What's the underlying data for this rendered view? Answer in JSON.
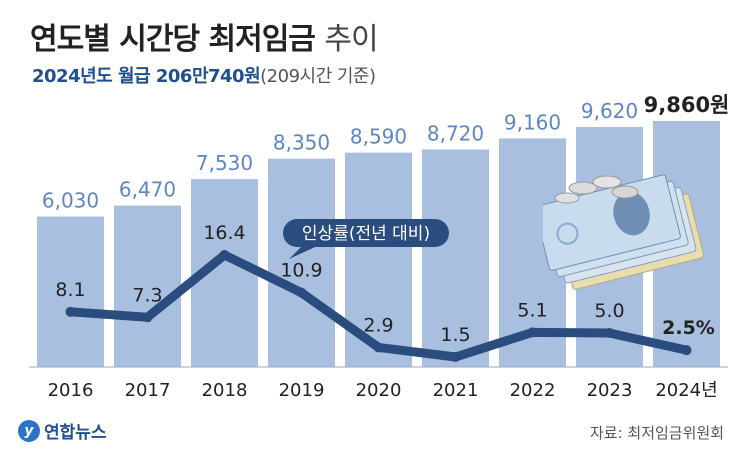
{
  "header": {
    "title_main": "연도별 시간당 최저임금",
    "title_light": "추이",
    "subtitle_main": "2024년도 월급 206만740원",
    "subtitle_basis": "(209시간 기준)"
  },
  "footer": {
    "logo_mark": "y",
    "logo_text": "연합뉴스",
    "source": "자료: 최저임금위원회"
  },
  "colors": {
    "bar": "#a9bfdf",
    "line": "#2b4c7e",
    "bar_label": "#5f86c3",
    "last_label": "#222222"
  },
  "chart_data": {
    "type": "bar",
    "title": "연도별 시간당 최저임금 추이",
    "categories": [
      "2016",
      "2017",
      "2018",
      "2019",
      "2020",
      "2021",
      "2022",
      "2023",
      "2024년"
    ],
    "series": [
      {
        "name": "시간당 최저임금",
        "values": [
          6030,
          6470,
          7530,
          8350,
          8590,
          8720,
          9160,
          9620,
          9860
        ],
        "labels": [
          "6,030",
          "6,470",
          "7,530",
          "8,350",
          "8,590",
          "8,720",
          "9,160",
          "9,620",
          "9,860원"
        ]
      },
      {
        "name": "인상률(전년 대비)",
        "type": "line",
        "values": [
          8.1,
          7.3,
          16.4,
          10.9,
          2.9,
          1.5,
          5.1,
          5.0,
          2.5
        ],
        "labels": [
          "8.1",
          "7.3",
          "16.4",
          "10.9",
          "2.9",
          "1.5",
          "5.1",
          "5.0",
          "2.5%"
        ]
      }
    ],
    "legend_label": "인상률(전년 대비)",
    "ylim": [
      0,
      10500
    ]
  }
}
